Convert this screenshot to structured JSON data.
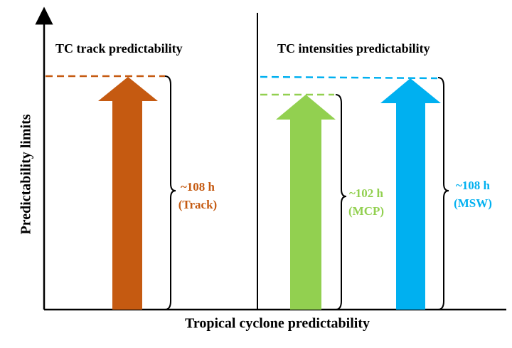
{
  "axes": {
    "y_label": "Predictability limits",
    "x_label": "Tropical cyclone predictability"
  },
  "panels": [
    {
      "title": "TC track predictability",
      "arrows": [
        {
          "label": "~108 h",
          "name": "(Track)"
        }
      ]
    },
    {
      "title": "TC intensities predictability",
      "arrows": [
        {
          "label": "~102 h",
          "name": "(MCP)"
        },
        {
          "label": "~108 h",
          "name": "(MSW)"
        }
      ]
    }
  ]
}
